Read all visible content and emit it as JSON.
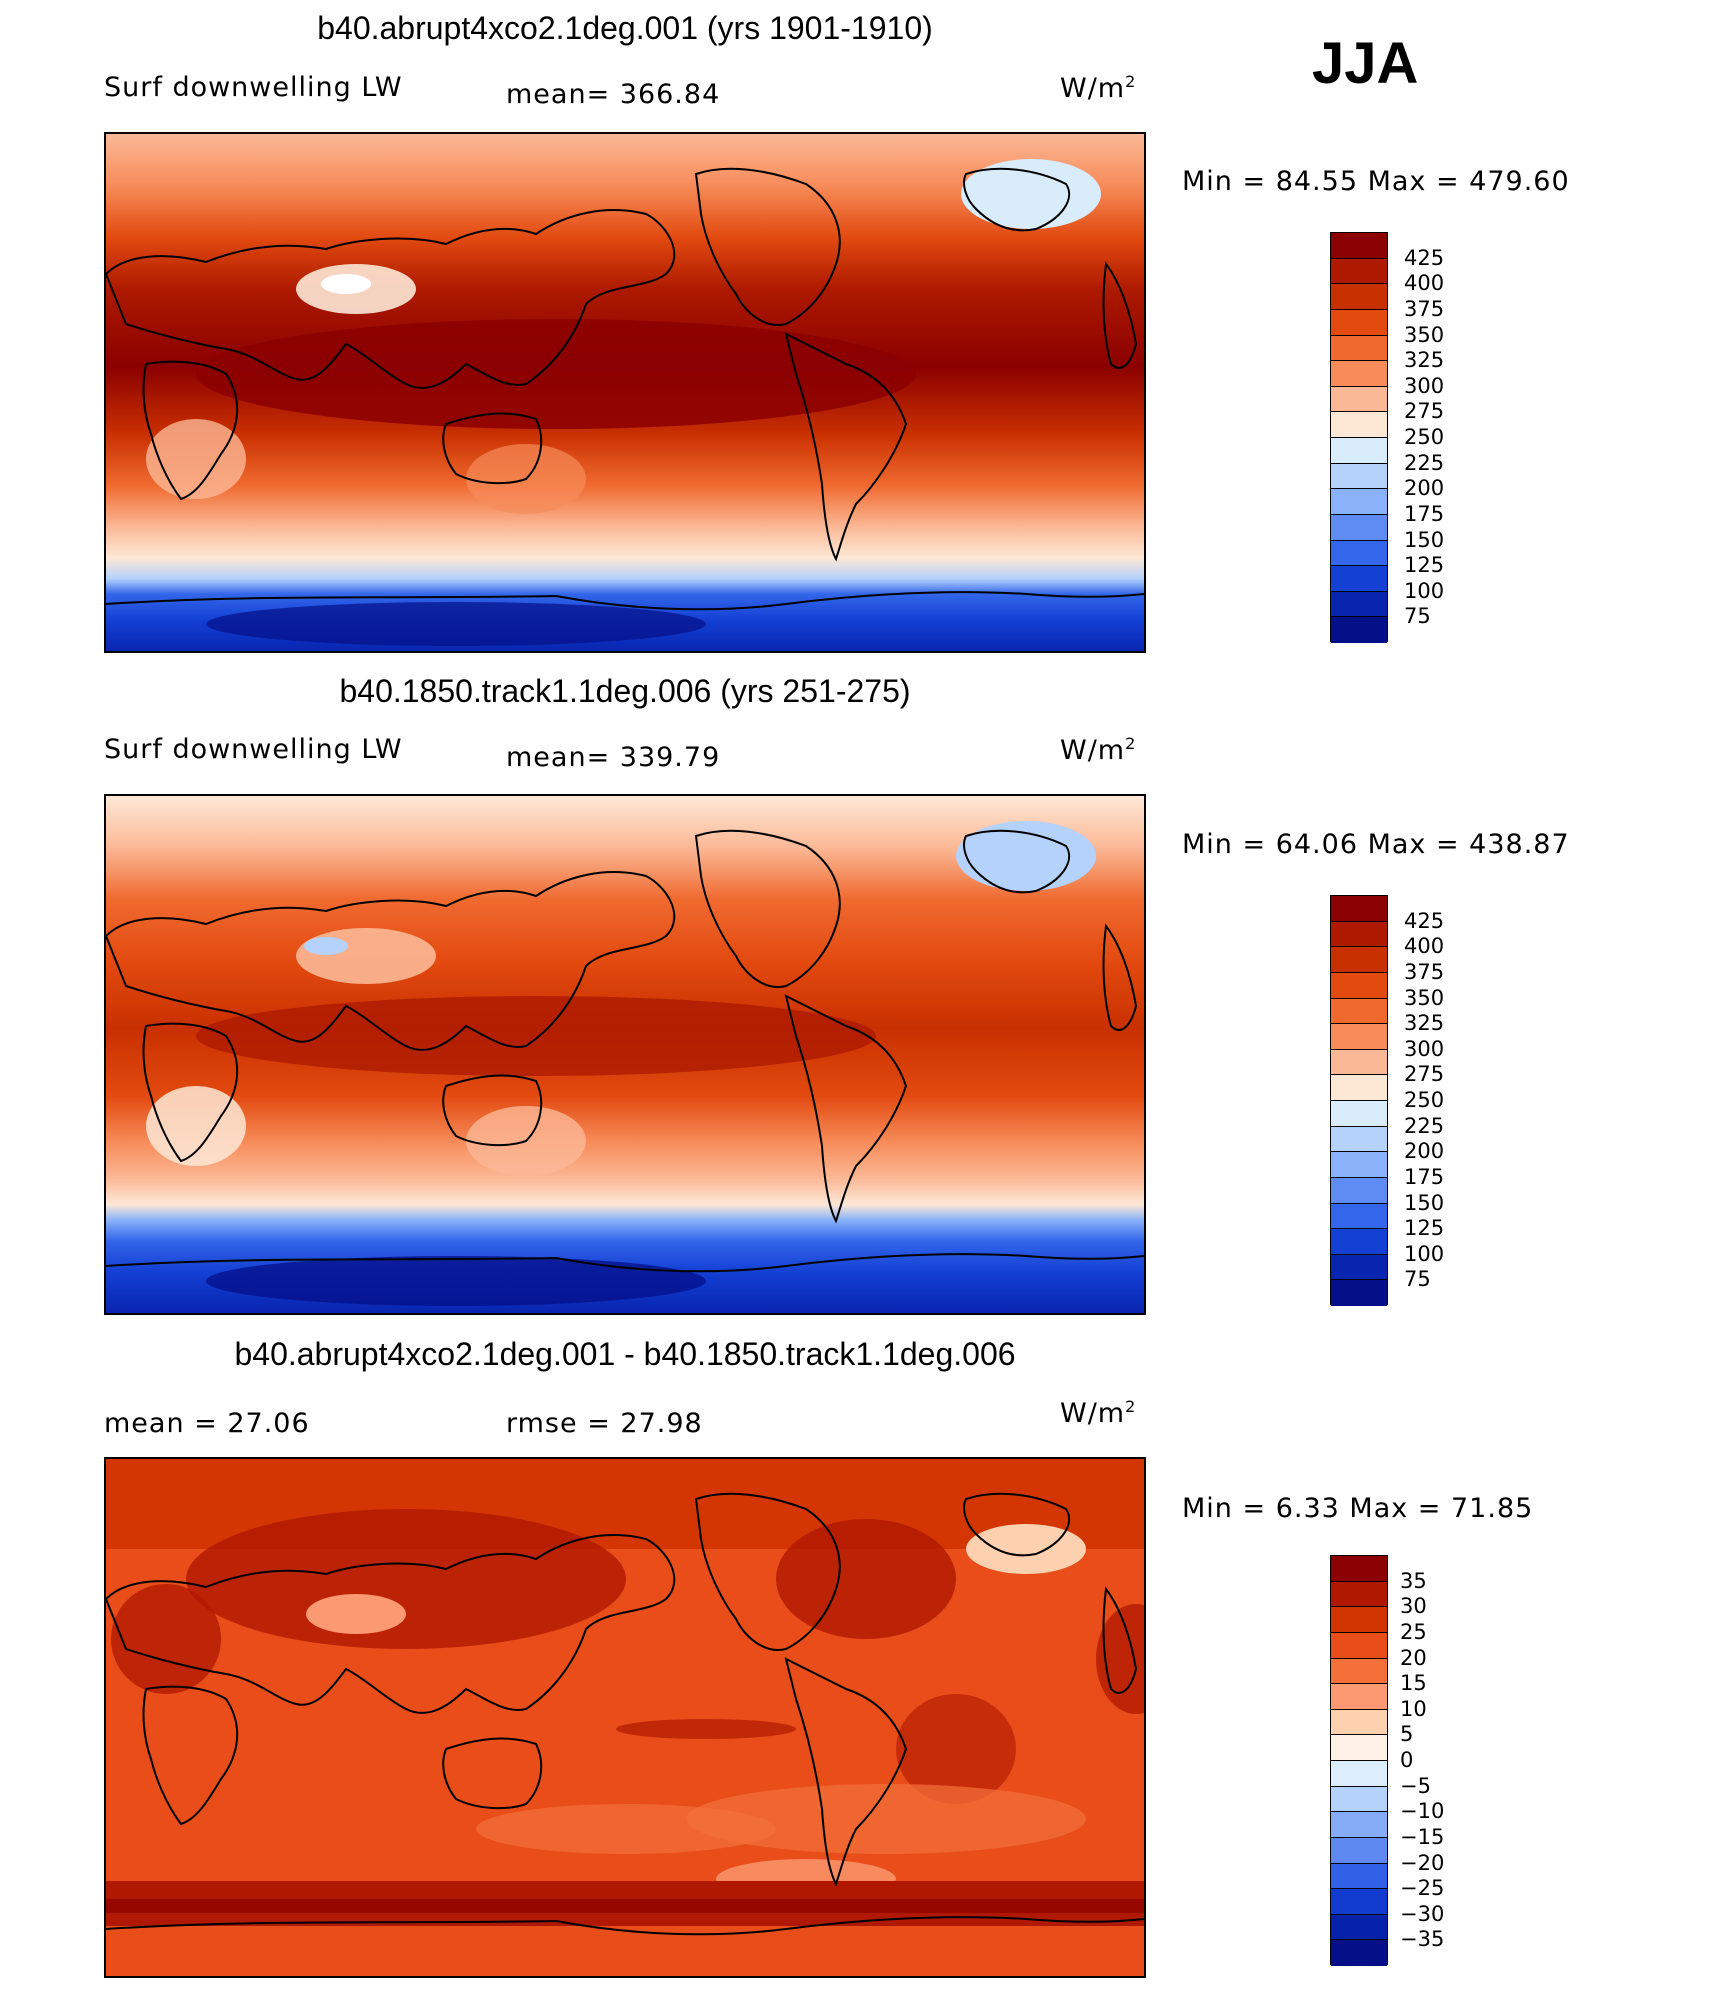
{
  "season": "JJA",
  "units_prefix": "W/m",
  "units_exp": "2",
  "colors": {
    "main_scale": [
      "#8b0000",
      "#ad1a00",
      "#c93000",
      "#e24a10",
      "#f06a30",
      "#f78c5a",
      "#fbb896",
      "#fde8d6",
      "#d8ecfc",
      "#b4d2fb",
      "#8ab2f8",
      "#5e8cf2",
      "#3366ea",
      "#1440d4",
      "#0825b0",
      "#040f88"
    ],
    "diff_scale": [
      "#8b0000",
      "#b01800",
      "#d03400",
      "#e84d1a",
      "#f4703a",
      "#fb9a72",
      "#fdd0b0",
      "#fdf0e4",
      "#dceefc",
      "#b4d2fb",
      "#86acf8",
      "#5c88f0",
      "#3260e6",
      "#123bd0",
      "#0722aa",
      "#040f88"
    ],
    "coast": "#000000"
  },
  "panels": [
    {
      "title": "b40.abrupt4xco2.1deg.001 (yrs 1901-1910)",
      "left_label": "Surf downwelling LW",
      "center_label": "mean=  366.84",
      "minmax": "Min =    84.55 Max  =  479.60",
      "colorbar_ticks": [
        "425",
        "400",
        "375",
        "350",
        "325",
        "300",
        "275",
        "250",
        "225",
        "200",
        "175",
        "150",
        "125",
        "100",
        "75"
      ]
    },
    {
      "title": "b40.1850.track1.1deg.006 (yrs 251-275)",
      "left_label": "Surf downwelling LW",
      "center_label": "mean=  339.79",
      "minmax": "Min =    64.06 Max  =  438.87",
      "colorbar_ticks": [
        "425",
        "400",
        "375",
        "350",
        "325",
        "300",
        "275",
        "250",
        "225",
        "200",
        "175",
        "150",
        "125",
        "100",
        "75"
      ]
    },
    {
      "title": "b40.abrupt4xco2.1deg.001 - b40.1850.track1.1deg.006",
      "left_label": "mean  =    27.06",
      "center_label": "rmse  =    27.98",
      "minmax": "Min =     6.33 Max  =    71.85",
      "colorbar_ticks": [
        "35",
        "30",
        "25",
        "20",
        "15",
        "10",
        "5",
        "0",
        "−5",
        "−10",
        "−15",
        "−20",
        "−25",
        "−30",
        "−35"
      ]
    }
  ]
}
